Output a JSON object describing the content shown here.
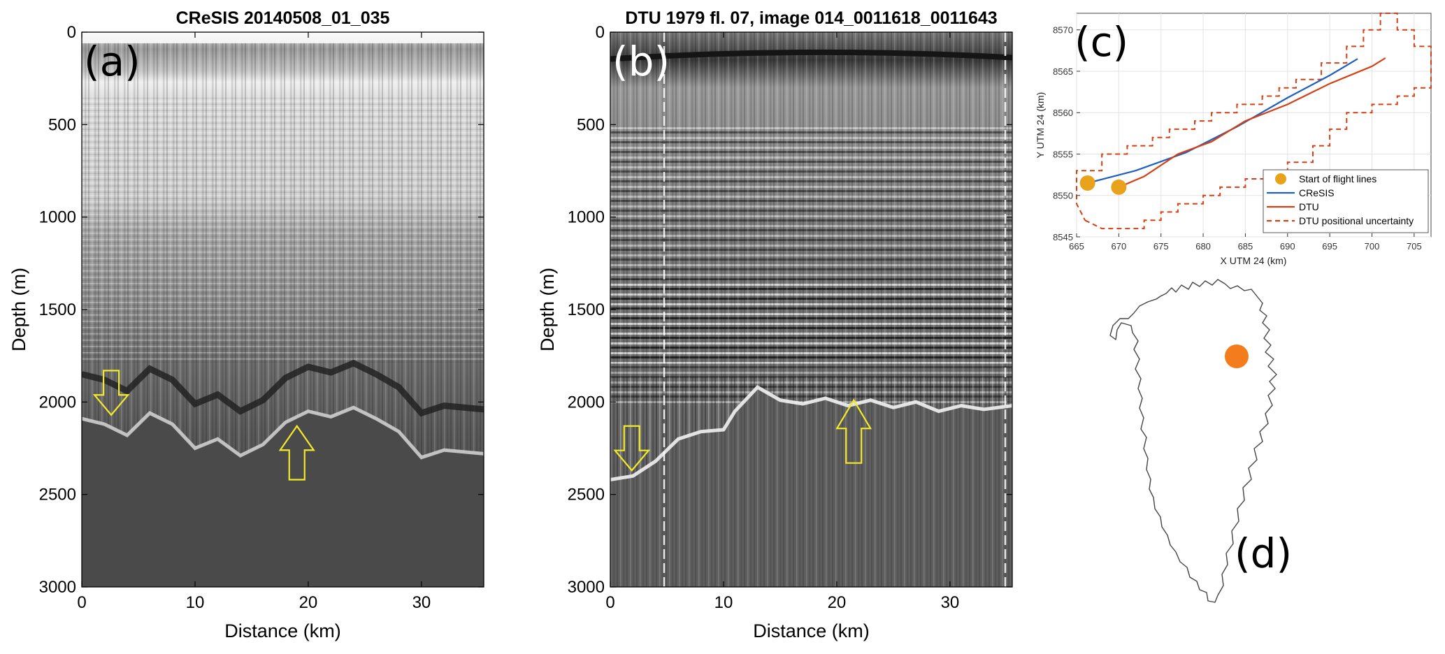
{
  "colors": {
    "cresis": "#1f5fbf",
    "dtu": "#d44013",
    "start_marker": "#e8a21c",
    "location_dot": "#f47c1c",
    "arrow": "#f2ea2a"
  },
  "panel_a": {
    "title": "CReSIS 20140508_01_035",
    "label": "(a)",
    "xlabel": "Distance (km)",
    "ylabel": "Depth (m)"
  },
  "panel_b": {
    "title": "DTU 1979 fl. 07, image 014_0011618_0011643",
    "label": "(b)",
    "xlabel": "Distance (km)",
    "ylabel": "Depth (m)"
  },
  "panel_c": {
    "label": "(c)",
    "xlabel": "X UTM 24 (km)",
    "ylabel": "Y UTM 24 (km)"
  },
  "panel_d": {
    "label": "(d)"
  },
  "chart_data": [
    {
      "type": "heatmap",
      "panel": "a",
      "title": "CReSIS 20140508_01_035",
      "xlabel": "Distance (km)",
      "ylabel": "Depth (m)",
      "xlim": [
        0,
        35.5
      ],
      "ylim": [
        3000,
        0
      ],
      "xticks": [
        0,
        10,
        20,
        30
      ],
      "yticks": [
        0,
        500,
        1000,
        1500,
        2000,
        2500,
        3000
      ],
      "surface_depth": 270,
      "bed_trace": {
        "x": [
          0,
          2,
          4,
          6,
          8,
          10,
          12,
          14,
          16,
          18,
          20,
          22,
          24,
          26,
          28,
          30,
          32,
          35.5
        ],
        "depth": [
          2090,
          2120,
          2180,
          2060,
          2120,
          2250,
          2200,
          2290,
          2230,
          2110,
          2050,
          2080,
          2030,
          2090,
          2160,
          2300,
          2260,
          2280
        ]
      },
      "arrows": [
        {
          "x": 2.6,
          "depth_top": 1830,
          "depth_bottom": 2070,
          "direction": "down"
        },
        {
          "x": 19,
          "depth_top": 2130,
          "depth_bottom": 2420,
          "direction": "up"
        }
      ]
    },
    {
      "type": "heatmap",
      "panel": "b",
      "title": "DTU 1979 fl. 07, image 014_0011618_0011643",
      "xlabel": "Distance (km)",
      "ylabel": "Depth (m)",
      "xlim": [
        0,
        35.5
      ],
      "ylim": [
        3000,
        0
      ],
      "xticks": [
        0,
        10,
        20,
        30
      ],
      "yticks": [
        0,
        500,
        1000,
        1500,
        2000,
        2500,
        3000
      ],
      "surface_depth": 130,
      "bed_trace": {
        "x": [
          0,
          2,
          4,
          6,
          8,
          10,
          11,
          13,
          15,
          17,
          19,
          21,
          23,
          25,
          27,
          29,
          31,
          33,
          35.5
        ],
        "depth": [
          2420,
          2400,
          2320,
          2200,
          2160,
          2150,
          2050,
          1920,
          1990,
          2010,
          1980,
          2020,
          1990,
          2030,
          2000,
          2050,
          2020,
          2040,
          2020
        ]
      },
      "arrows": [
        {
          "x": 1.9,
          "depth_top": 2130,
          "depth_bottom": 2370,
          "direction": "down"
        },
        {
          "x": 21.5,
          "depth_top": 1990,
          "depth_bottom": 2330,
          "direction": "up"
        }
      ]
    },
    {
      "type": "line",
      "panel": "c",
      "xlabel": "X UTM 24 (km)",
      "ylabel": "Y UTM 24 (km)",
      "xlim": [
        665,
        707
      ],
      "ylim": [
        8545,
        8572
      ],
      "xticks": [
        665,
        670,
        675,
        680,
        685,
        690,
        695,
        700,
        705
      ],
      "yticks": [
        8545,
        8550,
        8555,
        8560,
        8565,
        8570
      ],
      "grid": true,
      "legend_placement": "bottom-right",
      "series": [
        {
          "name": "CReSIS",
          "x": [
            666.3,
            672,
            678,
            684,
            690,
            695,
            698.3
          ],
          "y": [
            8551.5,
            8553,
            8555.2,
            8558.3,
            8561.8,
            8564.5,
            8566.5
          ]
        },
        {
          "name": "DTU",
          "x": [
            670,
            673,
            677,
            681,
            685,
            690,
            695,
            700,
            701.6
          ],
          "y": [
            8551.0,
            8552.3,
            8555.0,
            8556.5,
            8559.0,
            8561.0,
            8563.5,
            8565.6,
            8566.6
          ]
        },
        {
          "name": "DTU positional uncertainty",
          "x": [
            666,
            668,
            670,
            670,
            673,
            673,
            675,
            675,
            677,
            677,
            680,
            680,
            682,
            682,
            685,
            685,
            688,
            688,
            690,
            690,
            693,
            693,
            695,
            695,
            697,
            697,
            700,
            700,
            703,
            703,
            705,
            705,
            707,
            707,
            705,
            705,
            703,
            703,
            701,
            701,
            699,
            699,
            697,
            697,
            694,
            694,
            691,
            691,
            689,
            689,
            687,
            687,
            684,
            684,
            681,
            681,
            679,
            679,
            676,
            676,
            674,
            674,
            671,
            671,
            668,
            668,
            665,
            665,
            666
          ],
          "y": [
            8547,
            8546,
            8546,
            8546,
            8546,
            8547,
            8547,
            8548,
            8548,
            8549,
            8549,
            8550,
            8550,
            8551,
            8551,
            8552,
            8552,
            8553,
            8553,
            8554,
            8554,
            8556,
            8556,
            8558,
            8558,
            8560,
            8560,
            8561,
            8561,
            8562,
            8562,
            8563,
            8563,
            8568,
            8568,
            8570,
            8570,
            8572,
            8572,
            8570,
            8570,
            8568,
            8568,
            8566,
            8566,
            8564,
            8564,
            8563,
            8563,
            8562,
            8562,
            8561,
            8561,
            8560,
            8560,
            8559,
            8559,
            8558,
            8558,
            8557,
            8557,
            8556,
            8556,
            8555,
            8555,
            8553,
            8553,
            8549,
            8547
          ]
        },
        {
          "name": "Start of flight lines",
          "x": [
            666.3,
            670
          ],
          "y": [
            8551.5,
            8551.0
          ]
        }
      ]
    }
  ]
}
